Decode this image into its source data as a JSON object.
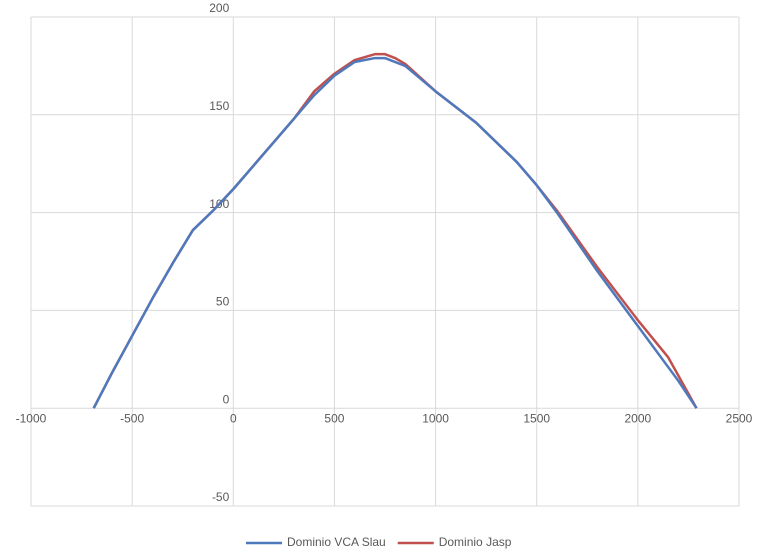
{
  "chart_data": {
    "type": "scatter",
    "xlim": [
      -1000,
      2500
    ],
    "xticks": [
      -1000,
      -500,
      0,
      500,
      1000,
      1500,
      2000,
      2500
    ],
    "ylim": [
      -50,
      200
    ],
    "yticks": [
      -50,
      0,
      50,
      100,
      150,
      200
    ],
    "grid": true,
    "legend": "bottom",
    "series": [
      {
        "name": "Dominio VCA Slau",
        "color": "#4f79bd",
        "x": [
          -690,
          -600,
          -500,
          -400,
          -300,
          -200,
          -100,
          0,
          100,
          200,
          300,
          400,
          500,
          600,
          700,
          750,
          850,
          1000,
          1200,
          1400,
          1500,
          1600,
          1800,
          2000,
          2200,
          2290
        ],
        "values": [
          0,
          18,
          37,
          56,
          74,
          91,
          101,
          112,
          124,
          136,
          148,
          160,
          170,
          177,
          179,
          179,
          175,
          162,
          146,
          126,
          114,
          100,
          70,
          42,
          14,
          0
        ]
      },
      {
        "name": "Dominio Jasp",
        "color": "#c0504d",
        "x": [
          -690,
          -600,
          -500,
          -400,
          -300,
          -200,
          -100,
          0,
          100,
          200,
          300,
          400,
          500,
          600,
          700,
          750,
          800,
          850,
          1000,
          1200,
          1400,
          1500,
          1600,
          1800,
          2000,
          2150,
          2290
        ],
        "values": [
          0,
          18,
          37,
          56,
          74,
          91,
          101,
          112,
          124,
          136,
          148,
          162,
          171,
          178,
          181,
          181,
          179,
          176,
          162,
          146,
          126,
          114,
          101,
          72,
          45,
          26,
          0
        ]
      }
    ]
  }
}
